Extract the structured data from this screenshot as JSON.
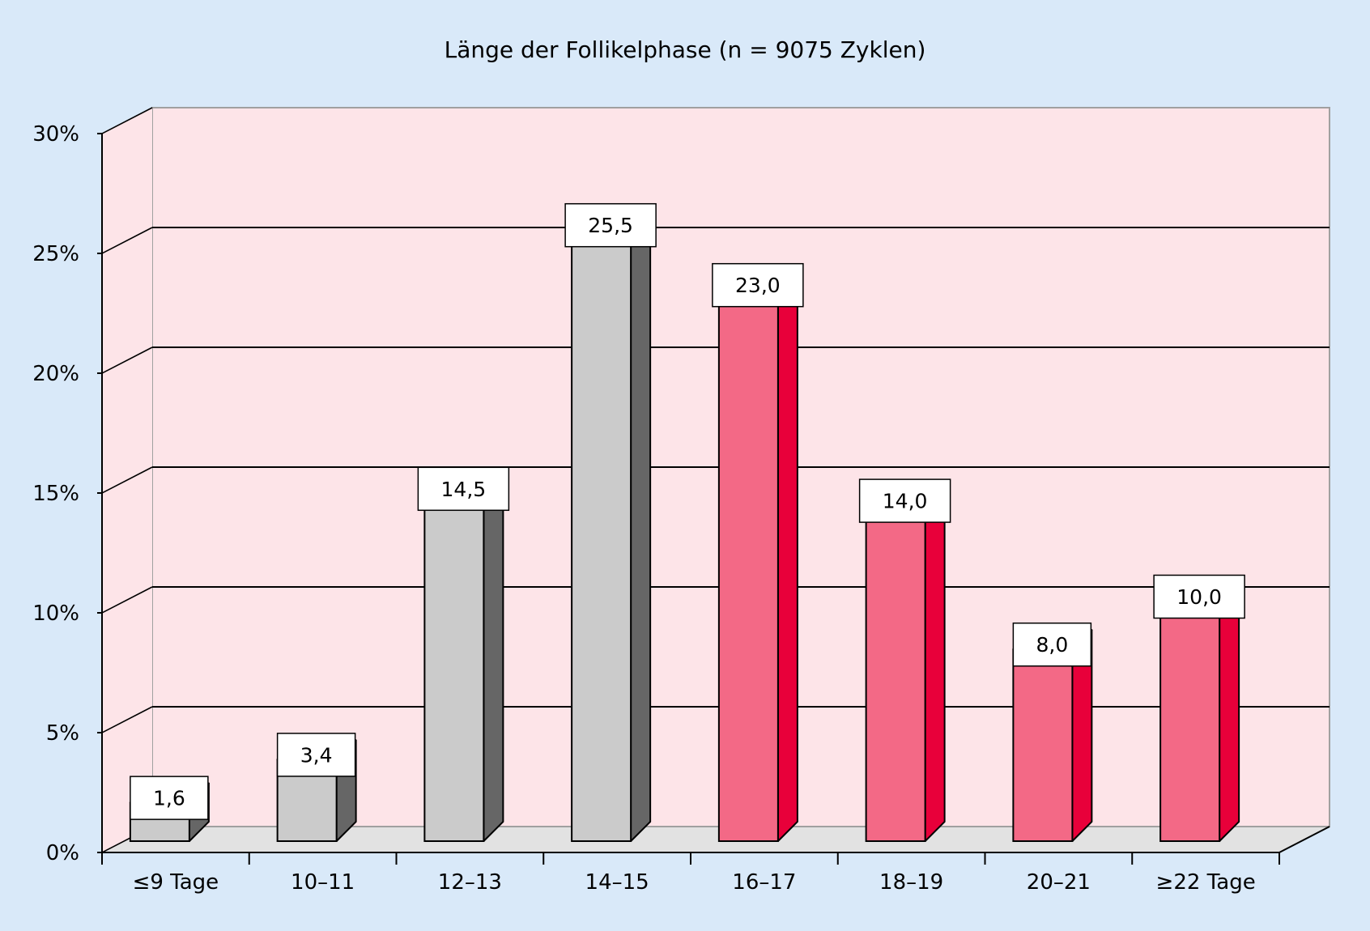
{
  "chart_data": {
    "type": "bar",
    "title": "Länge der Follikelphase (n = 9075 Zyklen)",
    "xlabel": "",
    "ylabel": "",
    "categories": [
      "≤9 Tage",
      "10–11",
      "12–13",
      "14–15",
      "16–17",
      "18–19",
      "20–21",
      "≥22 Tage"
    ],
    "values": [
      1.6,
      3.4,
      14.5,
      25.5,
      23.0,
      14.0,
      8.0,
      10.0
    ],
    "value_labels": [
      "1,6",
      "3,4",
      "14,5",
      "25,5",
      "23,0",
      "14,0",
      "8,0",
      "10,0"
    ],
    "bar_group": [
      "gray",
      "gray",
      "gray",
      "gray",
      "red",
      "red",
      "red",
      "red"
    ],
    "ylim": [
      0,
      30
    ],
    "y_ticks": [
      0,
      5,
      10,
      15,
      20,
      25,
      30
    ],
    "y_tick_labels": [
      "0%",
      "5%",
      "10%",
      "15%",
      "20%",
      "25%",
      "30%"
    ],
    "grid": true,
    "legend": "none",
    "colors": {
      "page_background": "#d9e9f9",
      "plot_background": "#fde4e8",
      "floor": "#e2e2e2",
      "gray_front": "#cbcbcb",
      "gray_side": "#666666",
      "red_front": "#f36986",
      "red_side": "#e8003a",
      "label_box": "#ffffff"
    }
  }
}
